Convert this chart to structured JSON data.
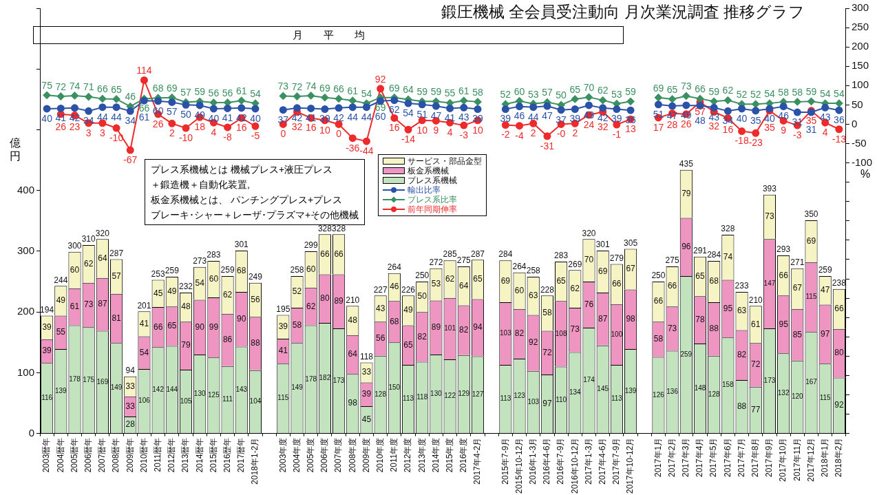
{
  "chart_data": {
    "type": "bar",
    "title": "鍛圧機械 全会員受注動向 月次業況調査 推移グラフ",
    "subtitle": "月　　平　　均",
    "ylabel": "億円",
    "y2label": "%",
    "categories": [
      "2003暦年",
      "2004暦年",
      "2005暦年",
      "2006暦年",
      "2007暦年",
      "2008暦年",
      "2009暦年",
      "2010暦年",
      "2011暦年",
      "2012暦年",
      "2013暦年",
      "2014暦年",
      "2015暦年",
      "2016歴年",
      "2017暦年",
      "2018年1-2月",
      null,
      "2003年度",
      "2004年度",
      "2005年度",
      "2006年度",
      "2007年度",
      "2008年度",
      "2009年度",
      "2010年度",
      "2011年度",
      "2012年度",
      "2013年度",
      "2014年度",
      "2015年度",
      "2016年度",
      "2017年4-2月",
      null,
      "2015年7-9月",
      "2015年10-12月",
      "2016年1-3月",
      "2016年4-6月",
      "2016年7-9月",
      "2016年10-12月",
      "2017年1-3月",
      "2017年4-6月",
      "2017年7-9月",
      "2017年10-12月",
      null,
      "2017年1月",
      "2017年2月",
      "2017年3月",
      "2017年4月",
      "2017年5月",
      "2017年6月",
      "2017年7月",
      "2017年8月",
      "2017年9月",
      "2017年10月",
      "2017年11月",
      "2017年12月",
      "2018年1月",
      "2018年2月"
    ],
    "stacked": true,
    "data_labels": true,
    "grid": false,
    "legend": "center",
    "series": [
      {
        "name": "プレス系機械",
        "color": "#c3e3bf",
        "values": [
          116,
          139,
          178,
          175,
          169,
          149,
          28,
          106,
          142,
          144,
          105,
          130,
          125,
          111,
          143,
          104,
          null,
          115,
          149,
          178,
          182,
          173,
          98,
          45,
          128,
          150,
          113,
          118,
          130,
          122,
          129,
          127,
          null,
          113,
          123,
          103,
          97,
          110,
          134,
          174,
          145,
          113,
          139,
          null,
          126,
          136,
          259,
          148,
          128,
          158,
          88,
          77,
          173,
          132,
          120,
          167,
          115,
          92
        ]
      },
      {
        "name": "板金系機械",
        "color": "#ee95c2",
        "values": [
          39,
          55,
          61,
          73,
          87,
          81,
          33,
          54,
          66,
          65,
          79,
          90,
          99,
          86,
          90,
          88,
          null,
          41,
          58,
          62,
          80,
          89,
          64,
          39,
          56,
          68,
          65,
          82,
          89,
          101,
          82,
          94,
          null,
          103,
          82,
          92,
          72,
          108,
          73,
          76,
          87,
          100,
          98,
          null,
          58,
          73,
          96,
          78,
          88,
          95,
          82,
          72,
          147,
          95,
          85,
          115,
          97,
          80
        ]
      },
      {
        "name": "サービス・部品金型",
        "color": "#f6f3c4",
        "values": [
          39,
          49,
          60,
          62,
          64,
          57,
          33,
          41,
          45,
          49,
          48,
          54,
          60,
          62,
          68,
          56,
          null,
          39,
          52,
          60,
          66,
          66,
          48,
          33,
          43,
          46,
          49,
          50,
          53,
          62,
          64,
          65,
          null,
          69,
          60,
          63,
          58,
          65,
          62,
          70,
          69,
          66,
          67,
          null,
          66,
          66,
          79,
          65,
          68,
          74,
          63,
          61,
          73,
          66,
          67,
          69,
          47,
          66
        ]
      },
      {
        "name": "輸出比率",
        "type": "line",
        "axis": "y2",
        "marker": "circle",
        "color": "#2a52a8",
        "values": [
          40,
          41,
          42,
          34,
          44,
          44,
          34,
          61,
          60,
          57,
          50,
          49,
          40,
          41,
          42,
          40,
          null,
          37,
          42,
          41,
          39,
          42,
          44,
          44,
          60,
          62,
          54,
          51,
          47,
          41,
          43,
          39,
          null,
          39,
          46,
          44,
          47,
          37,
          39,
          49,
          42,
          39,
          36,
          null,
          51,
          47,
          49,
          48,
          43,
          34,
          40,
          35,
          40,
          46,
          31,
          31,
          43,
          36
        ]
      },
      {
        "name": "プレス系比率",
        "type": "line",
        "axis": "y2",
        "marker": "diamond",
        "color": "#3a9060",
        "values": [
          75,
          72,
          74,
          71,
          66,
          65,
          46,
          66,
          68,
          69,
          57,
          59,
          56,
          56,
          61,
          54,
          null,
          73,
          72,
          74,
          69,
          66,
          61,
          54,
          69,
          69,
          64,
          59,
          59,
          55,
          61,
          58,
          null,
          52,
          60,
          53,
          57,
          50,
          65,
          70,
          62,
          53,
          59,
          null,
          69,
          65,
          73,
          66,
          59,
          62,
          52,
          52,
          54,
          58,
          58,
          59,
          54,
          54
        ]
      },
      {
        "name": "前年同期伸率",
        "type": "line",
        "axis": "y2",
        "marker": "circle",
        "color": "#ee2a2a",
        "values": [
          null,
          26,
          23,
          3,
          3,
          -10,
          -67,
          114,
          26,
          2,
          -10,
          18,
          4,
          -8,
          16,
          -5,
          null,
          0,
          32,
          16,
          10,
          0,
          -36,
          -44,
          92,
          16,
          -14,
          10,
          9,
          4,
          -3,
          10,
          null,
          -2,
          -4,
          2,
          -31,
          0,
          2,
          24,
          32,
          -1,
          13,
          null,
          17,
          28,
          26,
          57,
          32,
          16,
          -18,
          -23,
          35,
          9,
          -3,
          35,
          4,
          -13
        ],
        "value_labels": [
          null,
          "26",
          "23",
          "3",
          "3",
          "-10",
          "-67",
          "114",
          "26",
          "2",
          "-10",
          "18",
          "4",
          "-8",
          "16",
          "-5",
          null,
          "0",
          "32",
          "16",
          "10",
          "0",
          "-36",
          "-44",
          "92",
          "16",
          "-14",
          "10",
          "9",
          "4",
          "-3",
          "10",
          null,
          "-2",
          "-4",
          "2",
          "-31",
          "-0",
          "2",
          "24",
          "32",
          "-1",
          "13",
          null,
          "17",
          "28",
          "26",
          "57",
          "32",
          "16",
          "-18",
          "-23",
          "35",
          "9",
          "-3",
          "35",
          "4",
          "-13"
        ]
      }
    ],
    "totals": [
      "194",
      "244",
      "300",
      "310",
      "320",
      "287",
      "94",
      "201",
      "253",
      "259",
      "232",
      "273",
      "283",
      "259",
      "301",
      "249",
      null,
      "195",
      "258",
      "299",
      "328",
      "328",
      "210",
      "118",
      "227",
      "264",
      "226",
      "250",
      "272",
      "285",
      "275",
      "287",
      null,
      "284",
      "264",
      "258",
      "228",
      "283",
      "269",
      "320",
      "301",
      "279",
      "305",
      null,
      "250",
      "275",
      "435",
      "291",
      "284",
      "328",
      "233",
      "210",
      "393",
      "293",
      "271",
      "350",
      "259",
      "238"
    ],
    "ylim": [
      0,
      700
    ],
    "yticks": [
      0,
      100,
      200,
      300,
      400,
      {
        "value": 500,
        "label": null
      },
      {
        "value": 600,
        "label": null
      },
      {
        "value": 700,
        "label": null
      }
    ],
    "y2lim": [
      -800,
      300
    ],
    "y2ticks": [
      300,
      250,
      200,
      150,
      100,
      50,
      0,
      -50,
      -100,
      {
        "value": -150,
        "label": null
      },
      {
        "value": -200,
        "label": null
      },
      {
        "value": -250,
        "label": null
      },
      {
        "value": -300,
        "label": null
      },
      {
        "value": -350,
        "label": null
      },
      {
        "value": -400,
        "label": null
      },
      {
        "value": -450,
        "label": null
      },
      {
        "value": -500,
        "label": null
      },
      {
        "value": -550,
        "label": null
      },
      {
        "value": -600,
        "label": null
      },
      {
        "value": -650,
        "label": null
      },
      {
        "value": -700,
        "label": null
      },
      {
        "value": -750,
        "label": null
      },
      {
        "value": -800,
        "label": null
      }
    ],
    "annotations": [
      "プレス系機械とは 機械プレス+液圧プレス",
      "＋鍛造機＋自動化装置,",
      "板金系機械とは、 パンチングプレス+プレス",
      "ブレーキ･シャー＋レーザ･プラズマ+その他機械"
    ]
  }
}
